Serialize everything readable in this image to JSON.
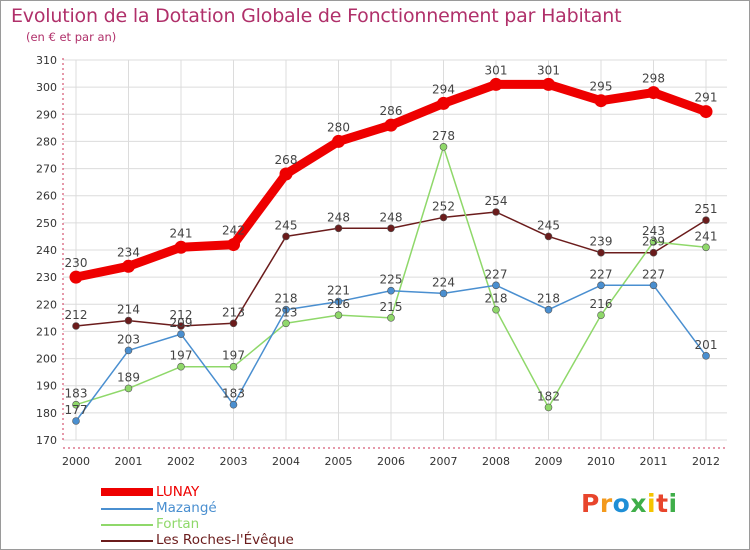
{
  "chart_data": {
    "type": "line",
    "title": "Evolution de la Dotation Globale de Fonctionnement par Habitant",
    "subtitle": "(en € et par an)",
    "xlabel": "",
    "ylabel": "",
    "categories": [
      "2000",
      "2001",
      "2002",
      "2003",
      "2004",
      "2005",
      "2006",
      "2007",
      "2008",
      "2009",
      "2010",
      "2011",
      "2012"
    ],
    "ylim": [
      170,
      310
    ],
    "yticks": [
      170,
      180,
      190,
      200,
      210,
      220,
      230,
      240,
      250,
      260,
      270,
      280,
      290,
      300,
      310
    ],
    "grid": true,
    "legend_position": "bottom-left",
    "series": [
      {
        "name": "LUNAY",
        "color": "#ee0000",
        "values": [
          230,
          234,
          241,
          242,
          268,
          280,
          286,
          294,
          301,
          301,
          295,
          298,
          291
        ],
        "labels": [
          "230",
          "234",
          "241",
          "242",
          "268",
          "280",
          "286",
          "294",
          "301",
          "301",
          "295",
          "298",
          "291"
        ]
      },
      {
        "name": "Mazangé",
        "color": "#4a8fd0",
        "values": [
          177,
          203,
          209,
          183,
          218,
          221,
          225,
          224,
          227,
          218,
          227,
          227,
          201
        ],
        "labels": [
          "177",
          "203",
          "209",
          "183",
          "218",
          "221",
          "225",
          "224",
          "227",
          "218",
          "227",
          "227",
          "201"
        ]
      },
      {
        "name": "Fortan",
        "color": "#8fd86a",
        "values": [
          183,
          189,
          197,
          197,
          213,
          216,
          215,
          278,
          218,
          182,
          216,
          243,
          241
        ],
        "labels": [
          "183",
          "189",
          "197",
          "197",
          "213",
          "216",
          "215",
          "278",
          "218",
          "182",
          "216",
          "243",
          "241"
        ]
      },
      {
        "name": "Les Roches-l'Évêque",
        "color": "#6b1c1c",
        "values": [
          212,
          214,
          212,
          213,
          245,
          248,
          248,
          252,
          254,
          245,
          239,
          239,
          251
        ],
        "labels": [
          "212",
          "214",
          "212",
          "213",
          "245",
          "248",
          "248",
          "252",
          "254",
          "245",
          "239",
          "239",
          "251"
        ]
      }
    ]
  },
  "legend": {
    "items": [
      {
        "label": "LUNAY",
        "color": "#ee0000"
      },
      {
        "label": "Mazangé",
        "color": "#4a8fd0"
      },
      {
        "label": "Fortan",
        "color": "#8fd86a"
      },
      {
        "label": "Les Roches-l'Évêque",
        "color": "#6b1c1c"
      }
    ]
  },
  "logo": {
    "text": "Proxiti",
    "letter_colors": [
      "#e8452c",
      "#f39a1d",
      "#1f8fd6",
      "#3fae49",
      "#f5c400",
      "#e8452c",
      "#3fae49"
    ]
  }
}
